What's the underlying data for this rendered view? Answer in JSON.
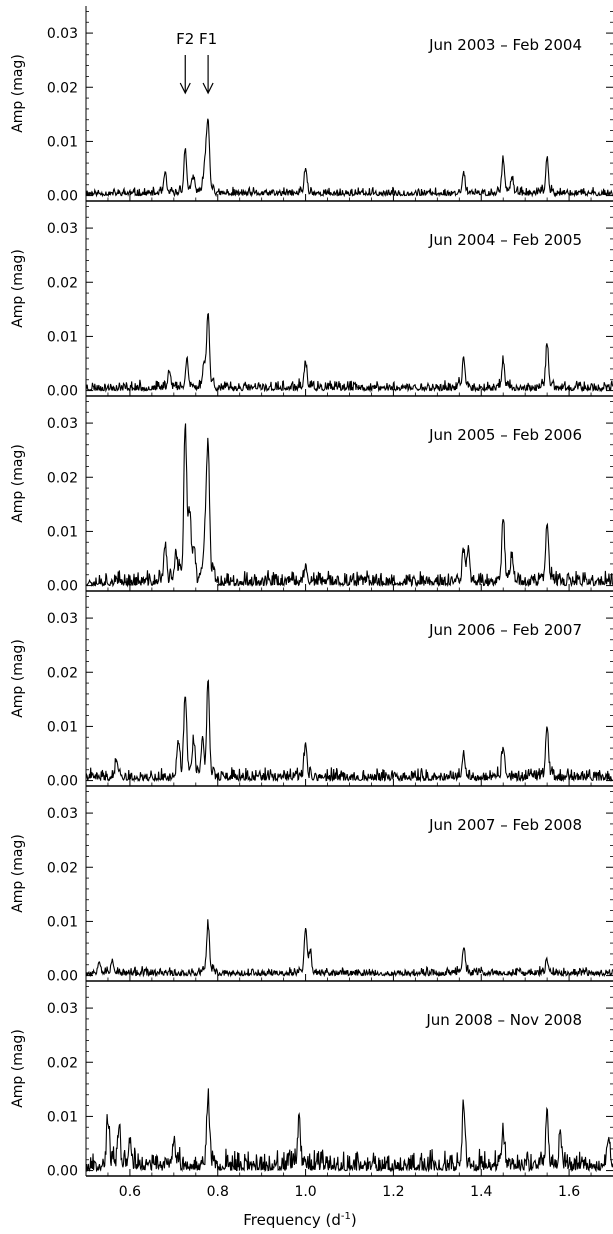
{
  "figure": {
    "xlabel_text": "Frequency (d",
    "xlabel_sup": "-1",
    "xlabel_close": ")",
    "ylabel": "Amp (mag)"
  },
  "annotations": [
    {
      "label": "F2",
      "freq": 0.726
    },
    {
      "label": "F1",
      "freq": 0.778
    }
  ],
  "chart_data": [
    {
      "type": "line",
      "title": "Jun 2003 – Feb 2004",
      "xlabel": "",
      "ylabel": "Amp (mag)",
      "xlim": [
        0.5,
        1.7
      ],
      "ylim": [
        -0.001,
        0.035
      ],
      "xticks": [
        "0.6",
        "0.8",
        "1.0",
        "1.2",
        "1.4",
        "1.6"
      ],
      "yticks": [
        "0.00",
        "0.01",
        "0.02",
        "0.03"
      ],
      "seed": 11,
      "noise": 0.0012,
      "peaks": [
        [
          0.68,
          0.0035
        ],
        [
          0.726,
          0.008
        ],
        [
          0.745,
          0.003
        ],
        [
          0.778,
          0.013
        ],
        [
          0.772,
          0.0055
        ],
        [
          1.0,
          0.0048
        ],
        [
          1.36,
          0.004
        ],
        [
          1.45,
          0.0065
        ],
        [
          1.47,
          0.003
        ],
        [
          1.55,
          0.0063
        ]
      ]
    },
    {
      "type": "line",
      "title": "Jun 2004 – Feb 2005",
      "xlabel": "",
      "ylabel": "Amp (mag)",
      "xlim": [
        0.5,
        1.7
      ],
      "ylim": [
        -0.001,
        0.035
      ],
      "xticks": [
        "0.6",
        "0.8",
        "1.0",
        "1.2",
        "1.4",
        "1.6"
      ],
      "yticks": [
        "0.00",
        "0.01",
        "0.02",
        "0.03"
      ],
      "seed": 23,
      "noise": 0.0015,
      "peaks": [
        [
          0.69,
          0.0035
        ],
        [
          0.73,
          0.0055
        ],
        [
          0.778,
          0.0135
        ],
        [
          0.77,
          0.004
        ],
        [
          1.0,
          0.0048
        ],
        [
          1.36,
          0.0055
        ],
        [
          1.45,
          0.005
        ],
        [
          1.55,
          0.0076
        ]
      ]
    },
    {
      "type": "line",
      "title": "Jun 2005 – Feb 2006",
      "xlabel": "",
      "ylabel": "Amp (mag)",
      "xlim": [
        0.5,
        1.7
      ],
      "ylim": [
        -0.001,
        0.035
      ],
      "xticks": [
        "0.6",
        "0.8",
        "1.0",
        "1.2",
        "1.4",
        "1.6"
      ],
      "yticks": [
        "0.00",
        "0.01",
        "0.02",
        "0.03"
      ],
      "seed": 37,
      "noise": 0.0022,
      "peaks": [
        [
          0.68,
          0.007
        ],
        [
          0.705,
          0.0055
        ],
        [
          0.726,
          0.0285
        ],
        [
          0.735,
          0.011
        ],
        [
          0.745,
          0.006
        ],
        [
          0.772,
          0.0095
        ],
        [
          0.778,
          0.024
        ],
        [
          1.0,
          0.003
        ],
        [
          1.36,
          0.0055
        ],
        [
          1.37,
          0.006
        ],
        [
          1.45,
          0.0118
        ],
        [
          1.47,
          0.005
        ],
        [
          1.55,
          0.0112
        ]
      ]
    },
    {
      "type": "line",
      "title": "Jun 2006 – Feb 2007",
      "xlabel": "",
      "ylabel": "Amp (mag)",
      "xlim": [
        0.5,
        1.7
      ],
      "ylim": [
        -0.001,
        0.035
      ],
      "xticks": [
        "0.6",
        "0.8",
        "1.0",
        "1.2",
        "1.4",
        "1.6"
      ],
      "yticks": [
        "0.00",
        "0.01",
        "0.02",
        "0.03"
      ],
      "seed": 41,
      "noise": 0.0018,
      "peaks": [
        [
          0.57,
          0.0035
        ],
        [
          0.71,
          0.006
        ],
        [
          0.726,
          0.0152
        ],
        [
          0.745,
          0.007
        ],
        [
          0.765,
          0.0062
        ],
        [
          0.778,
          0.017
        ],
        [
          1.0,
          0.0065
        ],
        [
          1.36,
          0.0045
        ],
        [
          1.45,
          0.0058
        ],
        [
          1.55,
          0.0095
        ]
      ]
    },
    {
      "type": "line",
      "title": "Jun 2007 – Feb 2008",
      "xlabel": "",
      "ylabel": "Amp (mag)",
      "xlim": [
        0.5,
        1.7
      ],
      "ylim": [
        -0.001,
        0.035
      ],
      "xticks": [
        "0.6",
        "0.8",
        "1.0",
        "1.2",
        "1.4",
        "1.6"
      ],
      "yticks": [
        "0.00",
        "0.01",
        "0.02",
        "0.03"
      ],
      "seed": 53,
      "noise": 0.0013,
      "peaks": [
        [
          0.53,
          0.0025
        ],
        [
          0.56,
          0.0025
        ],
        [
          0.778,
          0.009
        ],
        [
          1.0,
          0.008
        ],
        [
          1.01,
          0.0035
        ],
        [
          1.36,
          0.005
        ],
        [
          1.55,
          0.0025
        ]
      ]
    },
    {
      "type": "line",
      "title": "Jun 2008 – Nov 2008",
      "xlabel": "Frequency (d^-1)",
      "ylabel": "Amp (mag)",
      "xlim": [
        0.5,
        1.7
      ],
      "ylim": [
        -0.001,
        0.035
      ],
      "xticks": [
        "0.6",
        "0.8",
        "1.0",
        "1.2",
        "1.4",
        "1.6"
      ],
      "yticks": [
        "0.00",
        "0.01",
        "0.02",
        "0.03"
      ],
      "seed": 67,
      "noise": 0.003,
      "peaks": [
        [
          0.55,
          0.0085
        ],
        [
          0.575,
          0.007
        ],
        [
          0.6,
          0.005
        ],
        [
          0.7,
          0.005
        ],
        [
          0.778,
          0.013
        ],
        [
          0.985,
          0.0075
        ],
        [
          1.36,
          0.0115
        ],
        [
          1.45,
          0.006
        ],
        [
          1.55,
          0.0088
        ],
        [
          1.58,
          0.0055
        ],
        [
          1.69,
          0.0055
        ]
      ]
    }
  ]
}
